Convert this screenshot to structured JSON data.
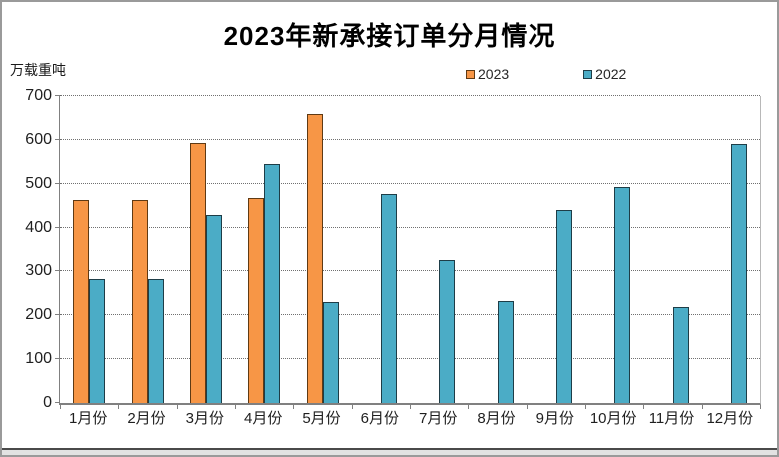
{
  "chart_data": {
    "type": "bar",
    "title": "2023年新承接订单分月情况",
    "unit_label": "万载重吨",
    "categories": [
      "1月份",
      "2月份",
      "3月份",
      "4月份",
      "5月份",
      "6月份",
      "7月份",
      "8月份",
      "9月份",
      "10月份",
      "11月份",
      "12月份"
    ],
    "series": [
      {
        "name": "2023",
        "color": "#F79646",
        "border_color": "#5f3a14",
        "values": [
          462,
          464,
          593,
          467,
          658,
          null,
          null,
          null,
          null,
          null,
          null,
          null
        ]
      },
      {
        "name": "2022",
        "color": "#4BACC6",
        "border_color": "#1e3d47",
        "values": [
          282,
          283,
          428,
          546,
          230,
          477,
          325,
          232,
          440,
          493,
          220,
          591
        ]
      }
    ],
    "ylim": [
      0,
      700
    ],
    "yticks": [
      0,
      100,
      200,
      300,
      400,
      500,
      600,
      700
    ],
    "grid": "horizontal-dotted",
    "legend_position": "top-center",
    "axis_color": "#808080"
  }
}
